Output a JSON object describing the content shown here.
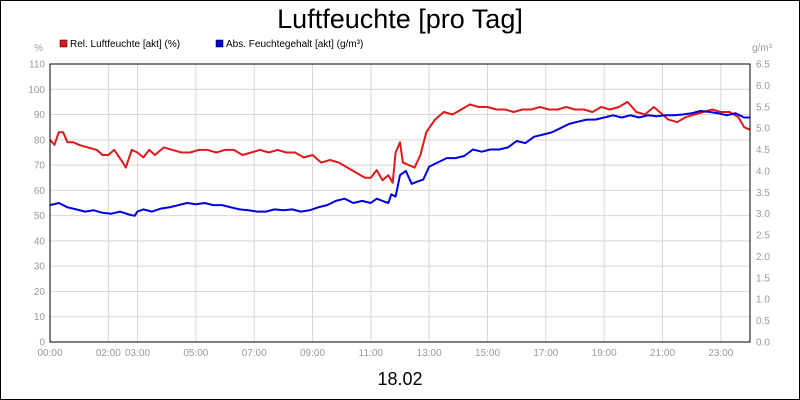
{
  "chart_data": {
    "type": "line",
    "title": "Luftfeuchte [pro Tag]",
    "xlabel": "18.02",
    "y_left_unit": "%",
    "y_right_unit": "g/m³",
    "ylim_left": [
      0,
      110
    ],
    "ylim_right": [
      0,
      6.5
    ],
    "left_ticks": [
      "0",
      "10",
      "20",
      "30",
      "40",
      "50",
      "60",
      "70",
      "80",
      "90",
      "100",
      "110"
    ],
    "right_ticks": [
      "0.0",
      "0.5",
      "1.0",
      "1.5",
      "2.0",
      "2.5",
      "3.0",
      "3.5",
      "4.0",
      "4.5",
      "5.0",
      "5.5",
      "6.0",
      "6.5"
    ],
    "x_ticks": [
      {
        "h": 0,
        "label": "00:00"
      },
      {
        "h": 2,
        "label": "02:00"
      },
      {
        "h": 3,
        "label": "03:00"
      },
      {
        "h": 5,
        "label": "05:00"
      },
      {
        "h": 7,
        "label": "07:00"
      },
      {
        "h": 9,
        "label": "09:00"
      },
      {
        "h": 11,
        "label": "11:00"
      },
      {
        "h": 13,
        "label": "13:00"
      },
      {
        "h": 15,
        "label": "15:00"
      },
      {
        "h": 17,
        "label": "17:00"
      },
      {
        "h": 19,
        "label": "19:00"
      },
      {
        "h": 21,
        "label": "21:00"
      },
      {
        "h": 23,
        "label": "23:00"
      }
    ],
    "grid": true,
    "legend_position": "top-left",
    "series": [
      {
        "name": "Rel. Luftfeuchte [akt] (%)",
        "axis": "left",
        "color": "#e0191b",
        "x": [
          0.0,
          0.15,
          0.3,
          0.45,
          0.6,
          0.8,
          1.0,
          1.3,
          1.6,
          1.8,
          2.0,
          2.2,
          2.5,
          2.6,
          2.8,
          3.0,
          3.2,
          3.4,
          3.6,
          3.9,
          4.2,
          4.5,
          4.8,
          5.1,
          5.4,
          5.7,
          6.0,
          6.3,
          6.6,
          6.9,
          7.2,
          7.5,
          7.8,
          8.1,
          8.4,
          8.7,
          9.0,
          9.3,
          9.6,
          9.9,
          10.2,
          10.5,
          10.8,
          11.0,
          11.2,
          11.4,
          11.6,
          11.75,
          11.85,
          12.0,
          12.1,
          12.3,
          12.5,
          12.7,
          12.9,
          13.2,
          13.5,
          13.8,
          14.1,
          14.4,
          14.7,
          15.0,
          15.3,
          15.6,
          15.9,
          16.2,
          16.5,
          16.8,
          17.1,
          17.4,
          17.7,
          18.0,
          18.3,
          18.6,
          18.9,
          19.2,
          19.5,
          19.8,
          20.1,
          20.4,
          20.7,
          21.0,
          21.2,
          21.5,
          21.8,
          22.1,
          22.4,
          22.7,
          23.0,
          23.3,
          23.6,
          23.8,
          24.0
        ],
        "values": [
          80,
          78,
          83,
          83,
          79,
          79,
          78,
          77,
          76,
          74,
          74,
          76,
          71,
          69,
          76,
          75,
          73,
          76,
          74,
          77,
          76,
          75,
          75,
          76,
          76,
          75,
          76,
          76,
          74,
          75,
          76,
          75,
          76,
          75,
          75,
          73,
          74,
          71,
          72,
          71,
          69,
          67,
          65,
          65,
          68,
          64,
          66,
          63,
          75,
          79,
          71,
          70,
          69,
          74,
          83,
          88,
          91,
          90,
          92,
          94,
          93,
          93,
          92,
          92,
          91,
          92,
          92,
          93,
          92,
          92,
          93,
          92,
          92,
          91,
          93,
          92,
          93,
          95,
          91,
          90,
          93,
          90,
          88,
          87,
          89,
          90,
          91,
          92,
          91,
          91,
          89,
          85,
          84
        ]
      },
      {
        "name": "Abs. Feuchtegehalt [akt] (g/m³)",
        "axis": "right",
        "color": "#0000e0",
        "x": [
          0.0,
          0.3,
          0.6,
          0.9,
          1.2,
          1.5,
          1.8,
          2.1,
          2.4,
          2.7,
          2.9,
          3.0,
          3.2,
          3.5,
          3.8,
          4.1,
          4.4,
          4.7,
          5.0,
          5.3,
          5.6,
          5.9,
          6.2,
          6.5,
          6.8,
          7.1,
          7.4,
          7.7,
          8.0,
          8.3,
          8.6,
          8.9,
          9.2,
          9.5,
          9.8,
          10.1,
          10.4,
          10.7,
          11.0,
          11.2,
          11.4,
          11.6,
          11.7,
          11.85,
          12.0,
          12.2,
          12.4,
          12.6,
          12.8,
          13.0,
          13.3,
          13.6,
          13.9,
          14.2,
          14.5,
          14.8,
          15.1,
          15.4,
          15.7,
          16.0,
          16.3,
          16.6,
          16.9,
          17.2,
          17.5,
          17.8,
          18.1,
          18.4,
          18.7,
          19.0,
          19.3,
          19.6,
          19.9,
          20.2,
          20.5,
          20.8,
          21.1,
          21.4,
          21.7,
          22.0,
          22.3,
          22.6,
          22.9,
          23.2,
          23.5,
          23.8,
          24.0
        ],
        "values": [
          3.2,
          3.25,
          3.15,
          3.1,
          3.05,
          3.08,
          3.02,
          3.0,
          3.05,
          2.98,
          2.95,
          3.05,
          3.1,
          3.05,
          3.12,
          3.15,
          3.2,
          3.25,
          3.22,
          3.25,
          3.2,
          3.2,
          3.15,
          3.1,
          3.08,
          3.05,
          3.05,
          3.1,
          3.08,
          3.1,
          3.05,
          3.08,
          3.15,
          3.2,
          3.3,
          3.35,
          3.25,
          3.3,
          3.25,
          3.35,
          3.3,
          3.25,
          3.45,
          3.4,
          3.9,
          4.0,
          3.7,
          3.75,
          3.8,
          4.1,
          4.2,
          4.3,
          4.3,
          4.35,
          4.5,
          4.45,
          4.5,
          4.5,
          4.55,
          4.7,
          4.65,
          4.8,
          4.85,
          4.9,
          5.0,
          5.1,
          5.15,
          5.2,
          5.2,
          5.25,
          5.3,
          5.25,
          5.3,
          5.25,
          5.3,
          5.28,
          5.3,
          5.3,
          5.32,
          5.35,
          5.4,
          5.38,
          5.35,
          5.3,
          5.35,
          5.25,
          5.25
        ]
      }
    ]
  }
}
